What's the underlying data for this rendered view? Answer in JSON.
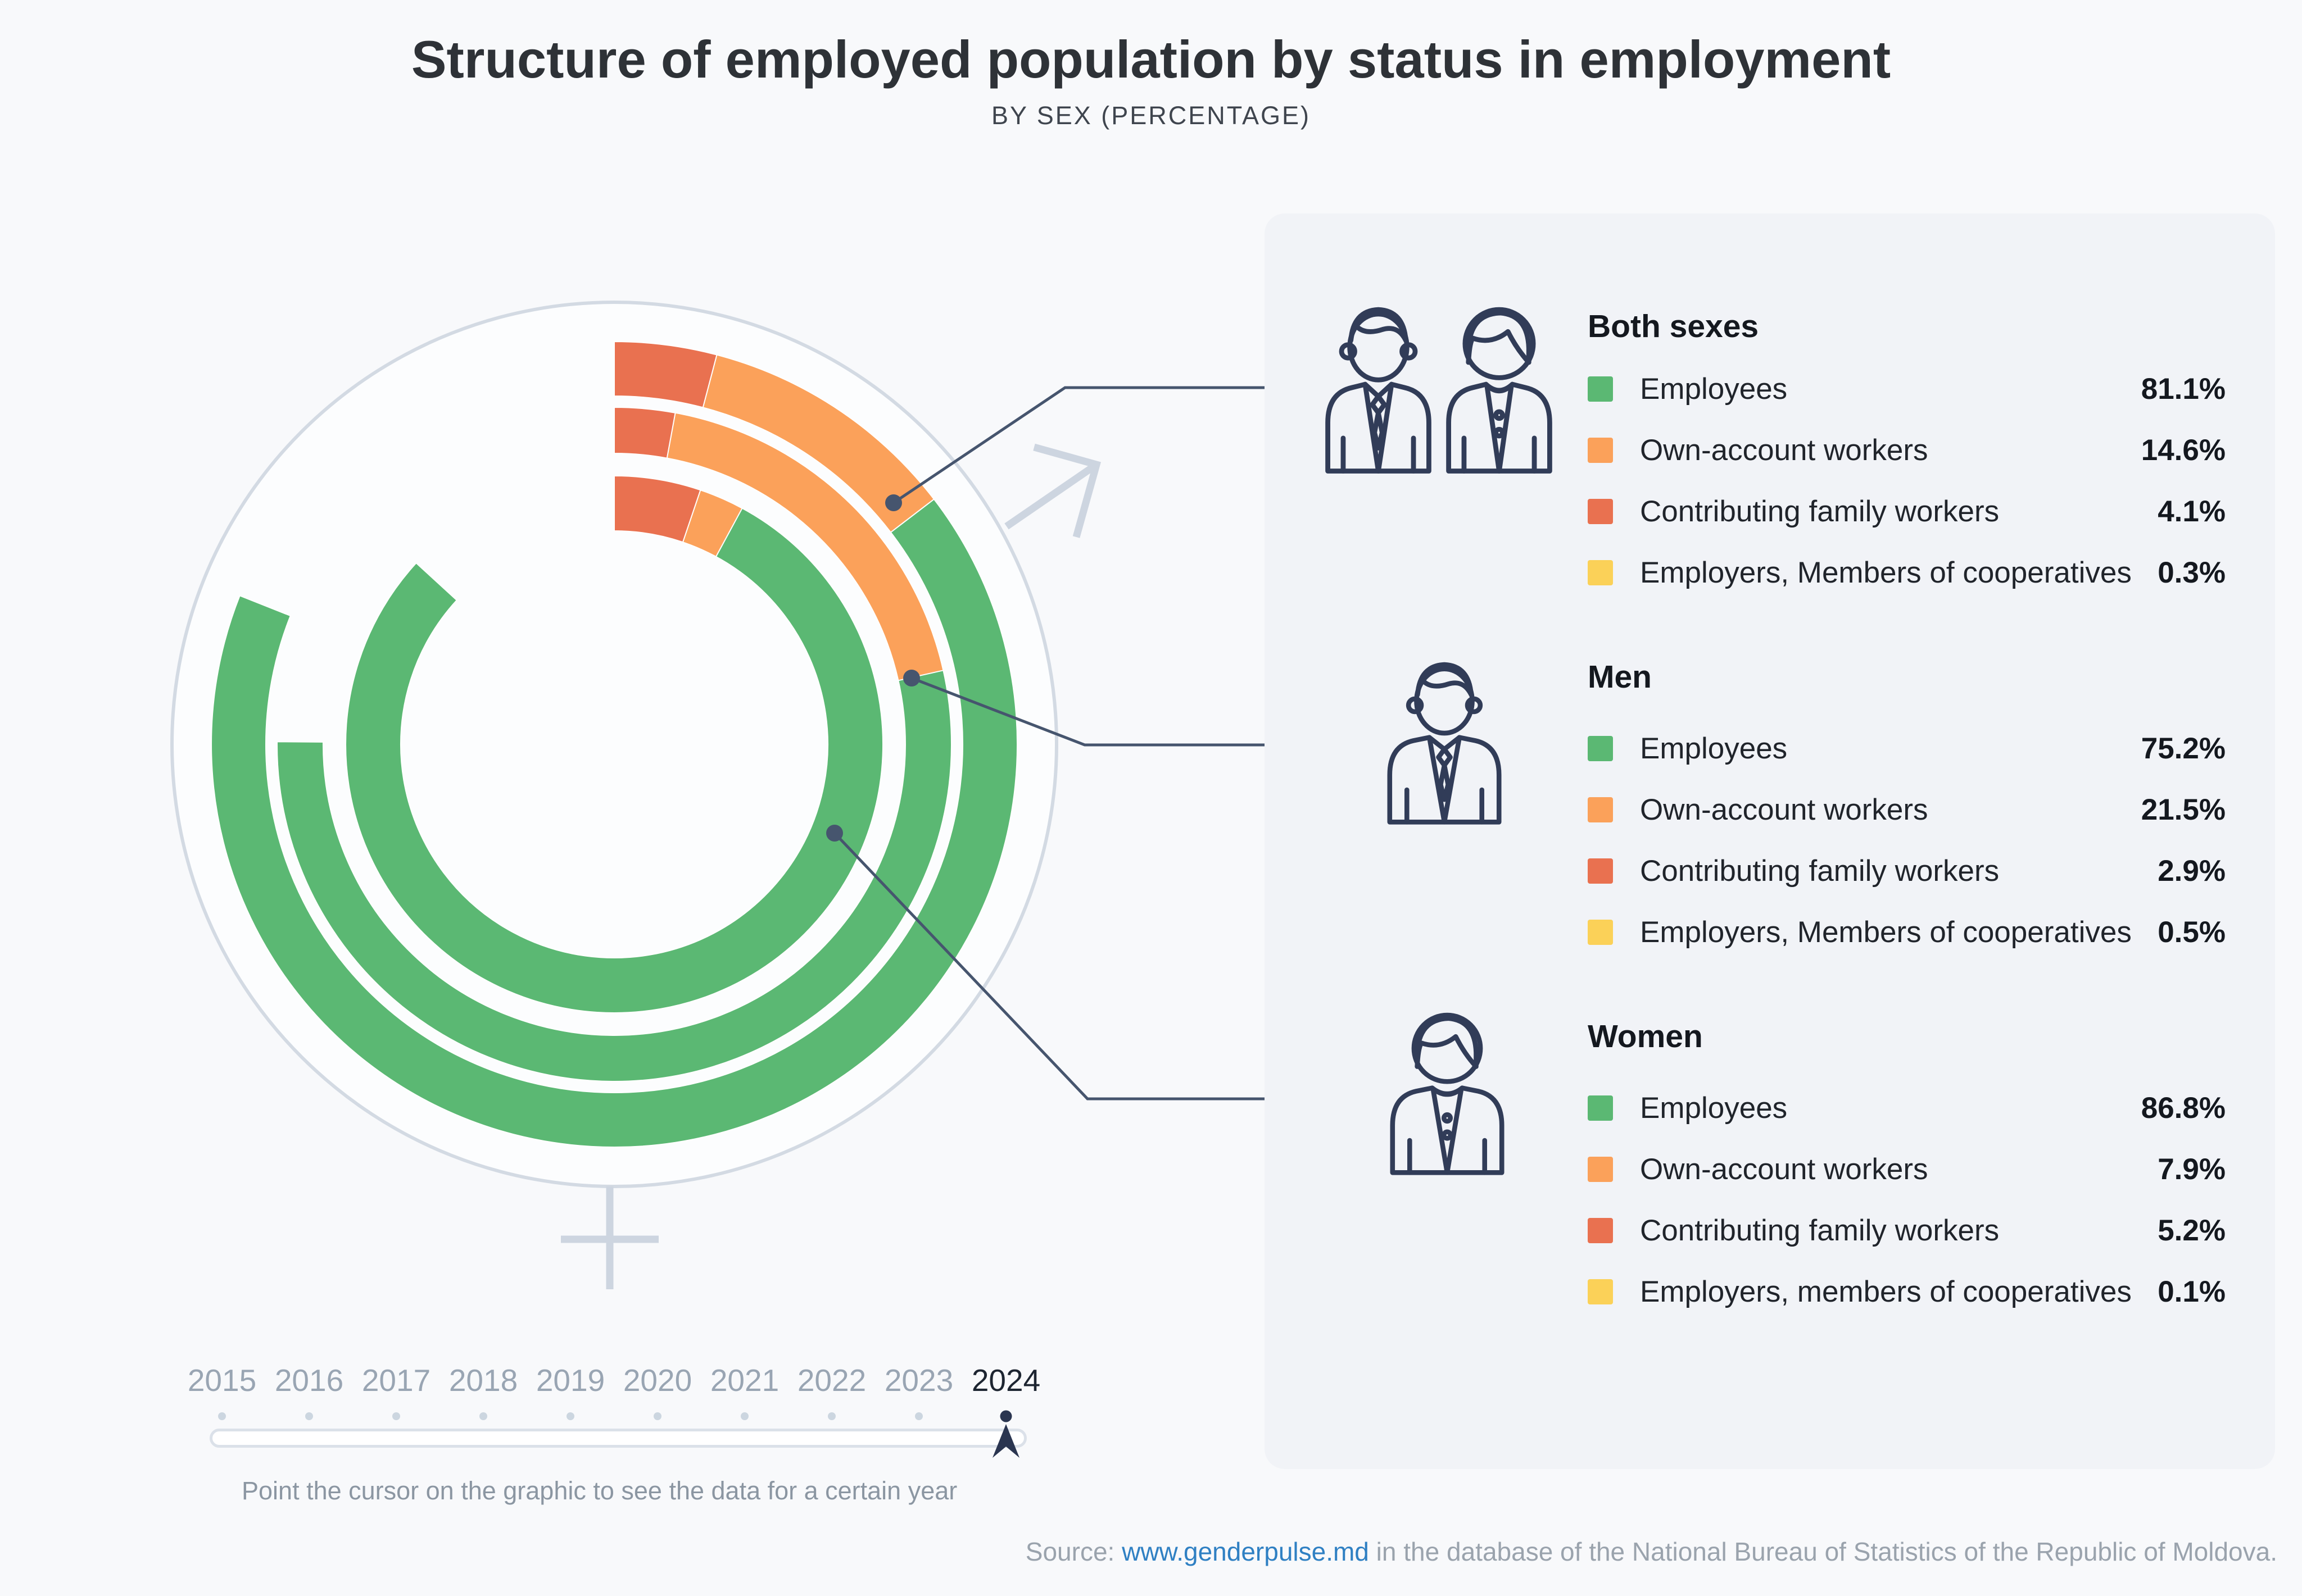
{
  "title": "Structure of employed population by status in employment",
  "subtitle": "BY SEX (PERCENTAGE)",
  "chart_data": {
    "type": "pie",
    "variant": "concentric-donut",
    "selected_year": "2024",
    "categories": [
      "Employees",
      "Own-account workers",
      "Contributing family workers",
      "Employers, Members of cooperatives"
    ],
    "colors": [
      "#5bb873",
      "#fba15a",
      "#e97150",
      "#fbd158"
    ],
    "rings": [
      {
        "name": "Both sexes",
        "position": "outer",
        "values": [
          81.1,
          14.6,
          4.1,
          0.3
        ]
      },
      {
        "name": "Men",
        "position": "middle",
        "values": [
          75.2,
          21.5,
          2.9,
          0.5
        ]
      },
      {
        "name": "Women",
        "position": "inner",
        "values": [
          86.8,
          7.9,
          5.2,
          0.1
        ]
      }
    ],
    "start_angle_deg": 0,
    "direction": "clockwise",
    "legend_position": "right",
    "decoration": "combined male-female gender symbol around donut"
  },
  "legend": {
    "groups": [
      {
        "title": "Both sexes",
        "icon": "both-sexes-icon",
        "items": [
          {
            "label": "Employees",
            "value": "81.1%",
            "color": "#5bb873"
          },
          {
            "label": "Own-account workers",
            "value": "14.6%",
            "color": "#fba15a"
          },
          {
            "label": "Contributing family workers",
            "value": "4.1%",
            "color": "#e97150"
          },
          {
            "label": "Employers, Members of cooperatives",
            "value": "0.3%",
            "color": "#fbd158"
          }
        ]
      },
      {
        "title": "Men",
        "icon": "man-icon",
        "items": [
          {
            "label": "Employees",
            "value": "75.2%",
            "color": "#5bb873"
          },
          {
            "label": "Own-account workers",
            "value": "21.5%",
            "color": "#fba15a"
          },
          {
            "label": "Contributing family workers",
            "value": "2.9%",
            "color": "#e97150"
          },
          {
            "label": "Employers, Members of cooperatives",
            "value": "0.5%",
            "color": "#fbd158"
          }
        ]
      },
      {
        "title": "Women",
        "icon": "woman-icon",
        "items": [
          {
            "label": "Employees",
            "value": "86.8%",
            "color": "#5bb873"
          },
          {
            "label": "Own-account workers",
            "value": "7.9%",
            "color": "#fba15a"
          },
          {
            "label": "Contributing family workers",
            "value": "5.2%",
            "color": "#e97150"
          },
          {
            "label": "Employers, members of cooperatives",
            "value": "0.1%",
            "color": "#fbd158"
          }
        ]
      }
    ]
  },
  "timeline": {
    "years": [
      "2015",
      "2016",
      "2017",
      "2018",
      "2019",
      "2020",
      "2021",
      "2022",
      "2023",
      "2024"
    ],
    "selected": "2024",
    "hint": "Point the cursor on the graphic to see the data for a certain year"
  },
  "source": {
    "prefix": "Source: ",
    "link": "www.genderpulse.md",
    "suffix": " in the database of the National Bureau of Statistics of the Republic of Moldova."
  }
}
